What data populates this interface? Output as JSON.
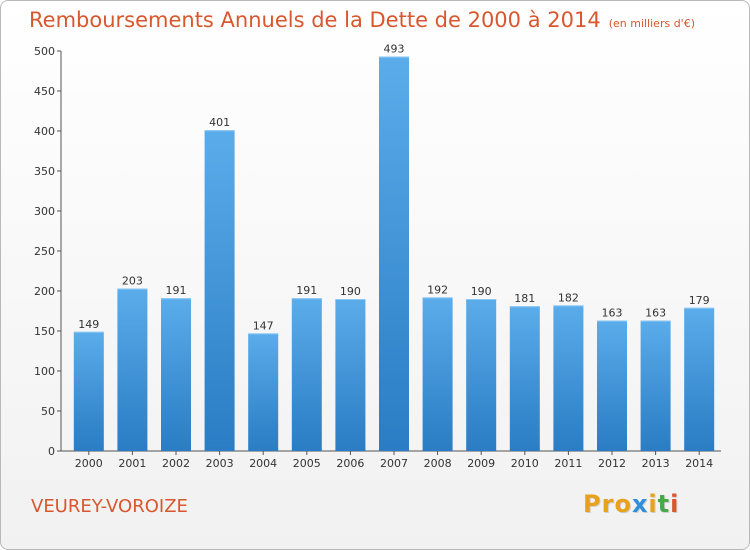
{
  "header": {
    "title": "Remboursements Annuels de la Dette de 2000 à 2014",
    "unit": "(en milliers d'€)"
  },
  "footer": {
    "commune": "VEUREY-VOROIZE",
    "logo": [
      "P",
      "r",
      "o",
      "x",
      "i",
      "t",
      "i"
    ]
  },
  "colors": {
    "title": "#d9572e",
    "bar_top": "#5aacea",
    "bar_bottom": "#2a7cc4",
    "logo": [
      "#e8a11b",
      "#e8a11b",
      "#e8a11b",
      "#2f8fd8",
      "#e8a11b",
      "#49a84a",
      "#d9572e"
    ]
  },
  "chart_data": {
    "type": "bar",
    "categories": [
      "2000",
      "2001",
      "2002",
      "2003",
      "2004",
      "2005",
      "2006",
      "2007",
      "2008",
      "2009",
      "2010",
      "2011",
      "2012",
      "2013",
      "2014"
    ],
    "values": [
      149,
      203,
      191,
      401,
      147,
      191,
      190,
      493,
      192,
      190,
      181,
      182,
      163,
      163,
      179
    ],
    "data_labels": [
      "149",
      "203",
      "191",
      "401",
      "147",
      "191",
      "190",
      "493",
      "192",
      "190",
      "181",
      "182",
      "163",
      "163",
      "179"
    ],
    "ylim": [
      0,
      500
    ],
    "yticks": [
      "0",
      "50",
      "100",
      "150",
      "200",
      "250",
      "300",
      "350",
      "400",
      "450",
      "500"
    ],
    "grid": false,
    "legend": "none"
  }
}
